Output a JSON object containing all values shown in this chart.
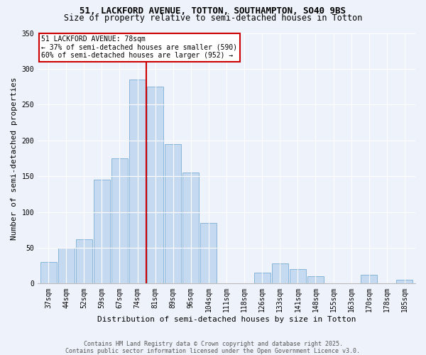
{
  "title1": "51, LACKFORD AVENUE, TOTTON, SOUTHAMPTON, SO40 9BS",
  "title2": "Size of property relative to semi-detached houses in Totton",
  "xlabel": "Distribution of semi-detached houses by size in Totton",
  "ylabel": "Number of semi-detached properties",
  "bin_labels": [
    "37sqm",
    "44sqm",
    "52sqm",
    "59sqm",
    "67sqm",
    "74sqm",
    "81sqm",
    "89sqm",
    "96sqm",
    "104sqm",
    "111sqm",
    "118sqm",
    "126sqm",
    "133sqm",
    "141sqm",
    "148sqm",
    "155sqm",
    "163sqm",
    "170sqm",
    "178sqm",
    "185sqm"
  ],
  "bar_heights": [
    30,
    50,
    62,
    145,
    175,
    285,
    275,
    195,
    155,
    85,
    0,
    0,
    15,
    28,
    20,
    10,
    0,
    0,
    12,
    0,
    5
  ],
  "bar_color": "#c5d9f1",
  "bar_edge_color": "#7bafd4",
  "vline_bin_index": 5.5,
  "annotation_title": "51 LACKFORD AVENUE: 78sqm",
  "annotation_line1": "← 37% of semi-detached houses are smaller (590)",
  "annotation_line2": "60% of semi-detached houses are larger (952) →",
  "annotation_box_color": "#ffffff",
  "annotation_box_edge": "#cc0000",
  "vline_color": "#cc0000",
  "footer1": "Contains HM Land Registry data © Crown copyright and database right 2025.",
  "footer2": "Contains public sector information licensed under the Open Government Licence v3.0.",
  "ylim": [
    0,
    350
  ],
  "yticks": [
    0,
    50,
    100,
    150,
    200,
    250,
    300,
    350
  ],
  "bg_color": "#eef2fa",
  "title_fontsize": 9,
  "subtitle_fontsize": 8.5,
  "axis_label_fontsize": 8,
  "tick_fontsize": 7,
  "footer_fontsize": 6,
  "annotation_fontsize": 7
}
